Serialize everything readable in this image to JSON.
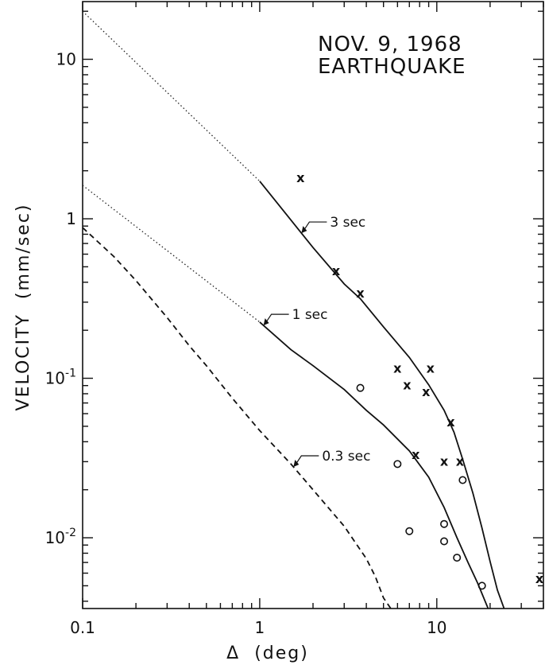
{
  "chart_data": {
    "type": "line",
    "title": [
      "NOV. 9, 1968",
      "EARTHQUAKE"
    ],
    "xlabel": "Δ  (deg)",
    "ylabel": "VELOCITY  (mm/sec)",
    "xscale": "log",
    "yscale": "log",
    "xlim": [
      0.1,
      40
    ],
    "ylim": [
      0.0036,
      23
    ],
    "grid": false,
    "x_ticks": [
      {
        "value": 0.1,
        "label": "0.1"
      },
      {
        "value": 1,
        "label": "1"
      },
      {
        "value": 10,
        "label": "10"
      }
    ],
    "y_ticks": [
      {
        "value": 0.01,
        "base": "10",
        "exp": "-2"
      },
      {
        "value": 0.1,
        "base": "10",
        "exp": "-1"
      },
      {
        "value": 1,
        "base": "1",
        "exp": ""
      },
      {
        "value": 10,
        "base": "10",
        "exp": ""
      }
    ],
    "series": [
      {
        "name": "3 sec",
        "style": "solid",
        "points": [
          [
            1.0,
            1.72
          ],
          [
            1.4,
            1.08
          ],
          [
            2.0,
            0.66
          ],
          [
            3.0,
            0.39
          ],
          [
            3.7,
            0.315
          ],
          [
            5.0,
            0.21
          ],
          [
            7.0,
            0.135
          ],
          [
            9.0,
            0.091
          ],
          [
            11.0,
            0.063
          ],
          [
            12.5,
            0.046
          ],
          [
            14.0,
            0.031
          ],
          [
            16.0,
            0.019
          ],
          [
            18.0,
            0.0115
          ],
          [
            20.0,
            0.0071
          ],
          [
            22.0,
            0.0047
          ],
          [
            24.0,
            0.0036
          ]
        ],
        "extrapolation": [
          [
            0.1,
            20
          ],
          [
            1.0,
            1.72
          ]
        ]
      },
      {
        "name": "1 sec",
        "style": "solid",
        "points": [
          [
            1.0,
            0.225
          ],
          [
            1.5,
            0.151
          ],
          [
            2.0,
            0.12
          ],
          [
            3.0,
            0.085
          ],
          [
            4.0,
            0.063
          ],
          [
            5.0,
            0.051
          ],
          [
            7.0,
            0.035
          ],
          [
            9.0,
            0.024
          ],
          [
            11.0,
            0.0155
          ],
          [
            13.0,
            0.01
          ],
          [
            15.0,
            0.007
          ],
          [
            17.0,
            0.0052
          ],
          [
            19.5,
            0.0036
          ]
        ],
        "extrapolation": [
          [
            0.1,
            1.62
          ],
          [
            1.0,
            0.225
          ]
        ]
      },
      {
        "name": "0.3 sec",
        "style": "dashed",
        "points": [
          [
            0.1,
            0.88
          ],
          [
            0.15,
            0.58
          ],
          [
            0.2,
            0.41
          ],
          [
            0.3,
            0.24
          ],
          [
            0.4,
            0.16
          ],
          [
            0.5,
            0.12
          ],
          [
            0.7,
            0.075
          ],
          [
            1.0,
            0.047
          ],
          [
            1.5,
            0.029
          ],
          [
            2.0,
            0.02
          ],
          [
            3.0,
            0.0118
          ],
          [
            4.0,
            0.0074
          ],
          [
            4.5,
            0.0057
          ],
          [
            5.0,
            0.0042
          ],
          [
            5.5,
            0.0036
          ]
        ]
      }
    ],
    "observations_x": [
      [
        1.7,
        1.8
      ],
      [
        2.7,
        0.47
      ],
      [
        3.7,
        0.34
      ],
      [
        6.0,
        0.115
      ],
      [
        6.8,
        0.09
      ],
      [
        8.7,
        0.082
      ],
      [
        9.2,
        0.115
      ],
      [
        7.6,
        0.033
      ],
      [
        11.0,
        0.03
      ],
      [
        12.0,
        0.053
      ],
      [
        13.5,
        0.03
      ],
      [
        38.0,
        0.0055
      ]
    ],
    "observations_o": [
      [
        3.7,
        0.087
      ],
      [
        6.0,
        0.029
      ],
      [
        7.0,
        0.011
      ],
      [
        11.0,
        0.0122
      ],
      [
        11.0,
        0.0095
      ],
      [
        13.0,
        0.0075
      ],
      [
        14.0,
        0.023
      ],
      [
        18.0,
        0.005
      ]
    ],
    "annotations": [
      {
        "text": "3 sec",
        "series": 0,
        "at_x": 1.72
      },
      {
        "text": "1 sec",
        "series": 1,
        "at_x": 1.05
      },
      {
        "text": "0.3 sec",
        "series": 2,
        "at_x": 1.55
      }
    ]
  }
}
